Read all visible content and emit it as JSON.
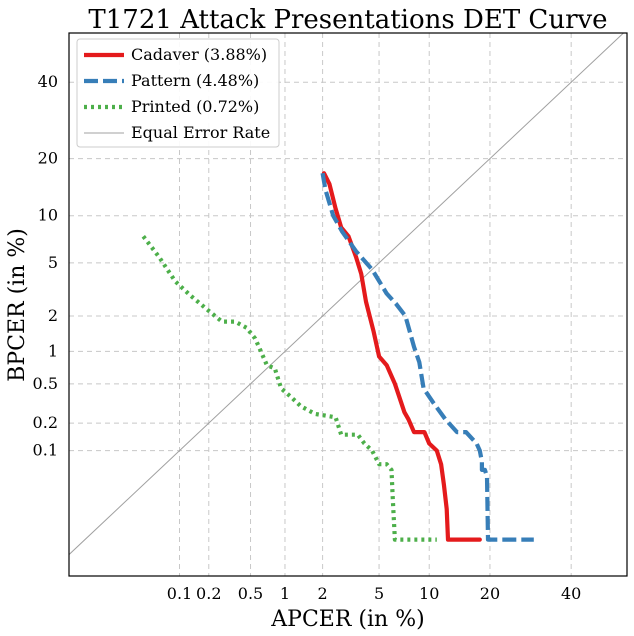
{
  "chart_data": {
    "type": "line",
    "title": "T1721 Attack Presentations DET Curve",
    "xlabel": "APCER (in %)",
    "ylabel": "BPCER (in %)",
    "scale": "probit",
    "xlim": [
      0.005,
      56
    ],
    "ylim": [
      0.0025,
      55
    ],
    "xticks": [
      0.1,
      0.2,
      0.5,
      1,
      2,
      5,
      10,
      20,
      40
    ],
    "xtick_labels": [
      "0.1",
      "0.2",
      "0.5",
      "1",
      "2",
      "5",
      "10",
      "20",
      "40"
    ],
    "yticks": [
      0.1,
      0.2,
      0.5,
      1,
      2,
      5,
      10,
      20,
      40
    ],
    "ytick_labels": [
      "0.1",
      "0.2",
      "0.5",
      "1",
      "2",
      "5",
      "10",
      "20",
      "40"
    ],
    "grid": true,
    "legend_position": "top-left",
    "series": [
      {
        "name": "Cadaver (3.88%)",
        "color": "#e41a1c",
        "style": "solid",
        "x": [
          2.05,
          2.25,
          2.5,
          2.75,
          3.1,
          3.5,
          3.8,
          4.1,
          4.6,
          5.0,
          5.6,
          6.3,
          7.2,
          7.6,
          8.2,
          9.4,
          10.0,
          11.0,
          11.6,
          12.0,
          12.4,
          12.6,
          14.0,
          18.0
        ],
        "y": [
          17,
          15,
          11,
          8.5,
          7.5,
          5.5,
          4.2,
          2.6,
          1.5,
          0.9,
          0.75,
          0.5,
          0.26,
          0.22,
          0.16,
          0.16,
          0.12,
          0.1,
          0.07,
          0.04,
          0.02,
          0.008,
          0.008,
          0.008
        ]
      },
      {
        "name": "Pattern (4.48%)",
        "color": "#377eb8",
        "style": "dashed",
        "x": [
          2.0,
          2.1,
          2.4,
          2.8,
          3.5,
          4.5,
          5.6,
          6.4,
          7.3,
          8.2,
          8.8,
          9.3,
          10.6,
          12.2,
          14.0,
          15.5,
          17.4,
          18.0,
          18.4,
          18.4,
          19.0,
          19.4,
          19.6,
          30.0
        ],
        "y": [
          17,
          14,
          10,
          8,
          6,
          4.5,
          3,
          2.5,
          2.0,
          1.1,
          0.8,
          0.45,
          0.32,
          0.22,
          0.16,
          0.16,
          0.12,
          0.1,
          0.075,
          0.06,
          0.06,
          0.05,
          0.008,
          0.008
        ]
      },
      {
        "name": "Printed (0.72%)",
        "color": "#4daf4a",
        "style": "dotted",
        "x": [
          0.04,
          0.06,
          0.09,
          0.13,
          0.2,
          0.27,
          0.36,
          0.46,
          0.55,
          0.62,
          0.7,
          0.82,
          0.93,
          1.1,
          1.35,
          1.75,
          2.1,
          2.5,
          2.75,
          3.1,
          3.6,
          4.0,
          4.5,
          5.0,
          5.6,
          6.0,
          6.1,
          6.2,
          6.3,
          8.0,
          9.0,
          11.0
        ],
        "y": [
          7.5,
          5.5,
          3.7,
          2.9,
          2.2,
          1.8,
          1.8,
          1.6,
          1.3,
          1.0,
          0.75,
          0.7,
          0.45,
          0.38,
          0.3,
          0.25,
          0.24,
          0.23,
          0.15,
          0.15,
          0.15,
          0.12,
          0.1,
          0.07,
          0.07,
          0.06,
          0.03,
          0.015,
          0.008,
          0.008,
          0.008,
          0.008
        ]
      },
      {
        "name": "Equal Error Rate",
        "color": "#a0a0a0",
        "style": "thin",
        "x": [
          0.005,
          56
        ],
        "y": [
          0.005,
          56
        ]
      }
    ]
  }
}
